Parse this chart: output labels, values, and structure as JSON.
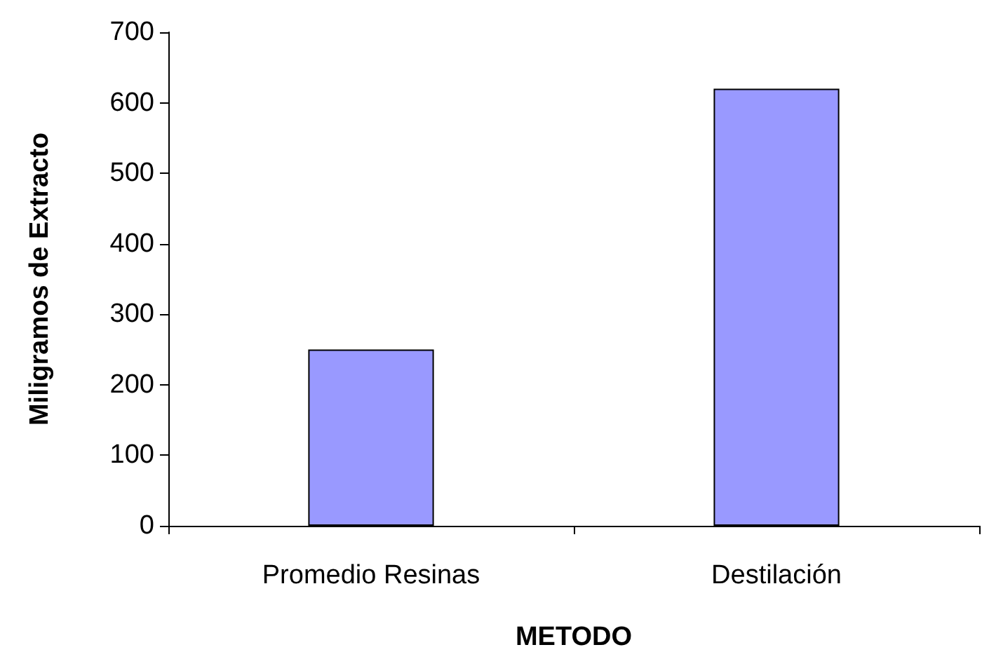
{
  "chart_data": {
    "type": "bar",
    "xlabel": "METODO",
    "ylabel": "Miligramos de Extracto",
    "categories": [
      "Promedio Resinas",
      "Destilación"
    ],
    "values": [
      250,
      620
    ],
    "color": "#9999ff",
    "ylim": [
      0,
      700
    ],
    "yticks": [
      0,
      100,
      200,
      300,
      400,
      500,
      600,
      700
    ],
    "grid": false
  }
}
